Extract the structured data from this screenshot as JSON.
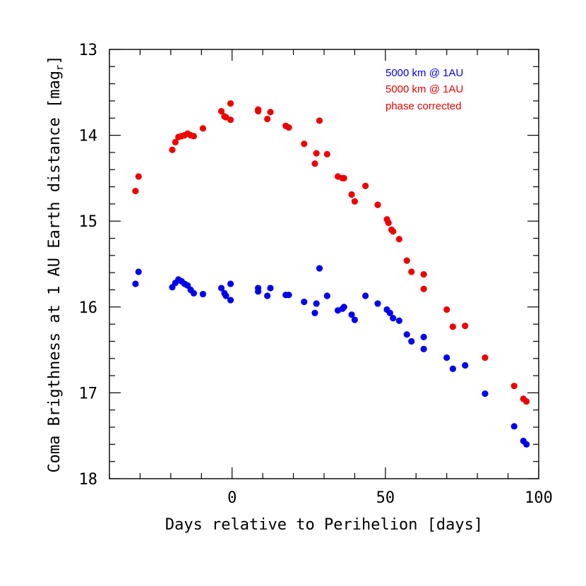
{
  "chart_data": {
    "type": "scatter",
    "title": "",
    "xlabel": "Days relative to Perihelion [days]",
    "ylabel_main": "Coma Brigthness at 1 AU Earth distance [mag",
    "ylabel_sub": "r",
    "ylabel_close": "]",
    "xlim": [
      -40,
      100
    ],
    "ylim": [
      13,
      18
    ],
    "y_inverted": true,
    "x_ticks": [
      0,
      50,
      100
    ],
    "y_ticks": [
      13,
      14,
      15,
      16,
      17,
      18
    ],
    "legend": [
      "5000 km @ 1AU",
      "5000 km @ 1AU",
      "phase corrected"
    ],
    "legend_position": "top-right",
    "series": [
      {
        "name": "5000 km @ 1AU",
        "color": "#0000ee",
        "points": [
          [
            -31.5,
            15.73
          ],
          [
            -30.5,
            15.59
          ],
          [
            -19.5,
            15.77
          ],
          [
            -18.5,
            15.72
          ],
          [
            -17.5,
            15.68
          ],
          [
            -16.5,
            15.7
          ],
          [
            -15.5,
            15.73
          ],
          [
            -14.5,
            15.75
          ],
          [
            -13.5,
            15.8
          ],
          [
            -12.5,
            15.84
          ],
          [
            -9.5,
            15.85
          ],
          [
            -3.5,
            15.78
          ],
          [
            -2.5,
            15.84
          ],
          [
            -2.0,
            15.87
          ],
          [
            -0.5,
            15.73
          ],
          [
            -0.5,
            15.92
          ],
          [
            8.5,
            15.78
          ],
          [
            8.5,
            15.82
          ],
          [
            11.5,
            15.87
          ],
          [
            12.5,
            15.78
          ],
          [
            17.5,
            15.86
          ],
          [
            18.5,
            15.86
          ],
          [
            23.5,
            15.94
          ],
          [
            27.0,
            16.07
          ],
          [
            27.5,
            15.96
          ],
          [
            28.5,
            15.55
          ],
          [
            31.0,
            15.87
          ],
          [
            34.5,
            16.04
          ],
          [
            36.0,
            16.02
          ],
          [
            36.5,
            16.0
          ],
          [
            39.0,
            16.09
          ],
          [
            40.0,
            16.15
          ],
          [
            43.5,
            15.87
          ],
          [
            47.5,
            15.96
          ],
          [
            50.5,
            16.03
          ],
          [
            51.5,
            16.07
          ],
          [
            52.5,
            16.13
          ],
          [
            54.5,
            16.16
          ],
          [
            57.0,
            16.32
          ],
          [
            58.5,
            16.4
          ],
          [
            62.5,
            16.35
          ],
          [
            62.5,
            16.49
          ],
          [
            70.0,
            16.59
          ],
          [
            72.0,
            16.72
          ],
          [
            76.0,
            16.68
          ],
          [
            82.5,
            17.01
          ],
          [
            92.0,
            17.39
          ],
          [
            95.0,
            17.56
          ],
          [
            96.0,
            17.6
          ]
        ]
      },
      {
        "name": "5000 km @ 1AU phase corrected",
        "color": "#ee0000",
        "points": [
          [
            -31.5,
            14.65
          ],
          [
            -30.5,
            14.48
          ],
          [
            -19.5,
            14.17
          ],
          [
            -18.5,
            14.08
          ],
          [
            -17.5,
            14.02
          ],
          [
            -16.5,
            14.01
          ],
          [
            -15.5,
            14.0
          ],
          [
            -14.5,
            13.98
          ],
          [
            -13.5,
            14.0
          ],
          [
            -12.5,
            14.01
          ],
          [
            -9.5,
            13.92
          ],
          [
            -3.5,
            13.72
          ],
          [
            -2.5,
            13.78
          ],
          [
            -2.0,
            13.79
          ],
          [
            -0.5,
            13.63
          ],
          [
            -0.5,
            13.82
          ],
          [
            8.5,
            13.7
          ],
          [
            8.5,
            13.72
          ],
          [
            11.5,
            13.81
          ],
          [
            12.5,
            13.73
          ],
          [
            17.5,
            13.89
          ],
          [
            18.5,
            13.91
          ],
          [
            23.5,
            14.1
          ],
          [
            27.0,
            14.33
          ],
          [
            27.5,
            14.21
          ],
          [
            28.5,
            13.83
          ],
          [
            31.0,
            14.22
          ],
          [
            34.5,
            14.48
          ],
          [
            36.0,
            14.5
          ],
          [
            36.5,
            14.5
          ],
          [
            39.0,
            14.69
          ],
          [
            40.0,
            14.77
          ],
          [
            43.5,
            14.59
          ],
          [
            47.5,
            14.81
          ],
          [
            50.5,
            14.98
          ],
          [
            51.0,
            15.02
          ],
          [
            52.0,
            15.1
          ],
          [
            52.5,
            15.12
          ],
          [
            54.5,
            15.21
          ],
          [
            57.0,
            15.46
          ],
          [
            58.5,
            15.59
          ],
          [
            62.5,
            15.62
          ],
          [
            62.5,
            15.79
          ],
          [
            70.0,
            16.03
          ],
          [
            72.0,
            16.23
          ],
          [
            76.0,
            16.22
          ],
          [
            82.5,
            16.59
          ],
          [
            92.0,
            16.92
          ],
          [
            95.0,
            17.07
          ],
          [
            96.0,
            17.1
          ]
        ]
      }
    ]
  }
}
